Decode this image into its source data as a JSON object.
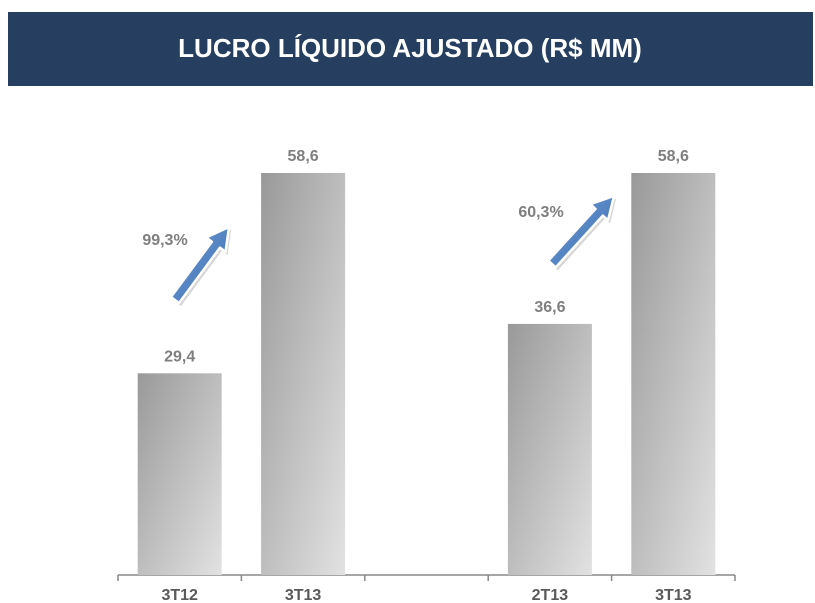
{
  "chart_data": {
    "type": "bar",
    "title": "LUCRO LÍQUIDO AJUSTADO (R$ MM)",
    "categories": [
      "3T12",
      "3T13",
      null,
      "2T13",
      "3T13"
    ],
    "values": [
      29.4,
      58.6,
      null,
      36.6,
      58.6
    ],
    "value_labels": [
      "29,4",
      "58,6",
      null,
      "36,6",
      "58,6"
    ],
    "color": "#999999",
    "annotations": [
      "99,3%",
      "60,3%"
    ]
  }
}
